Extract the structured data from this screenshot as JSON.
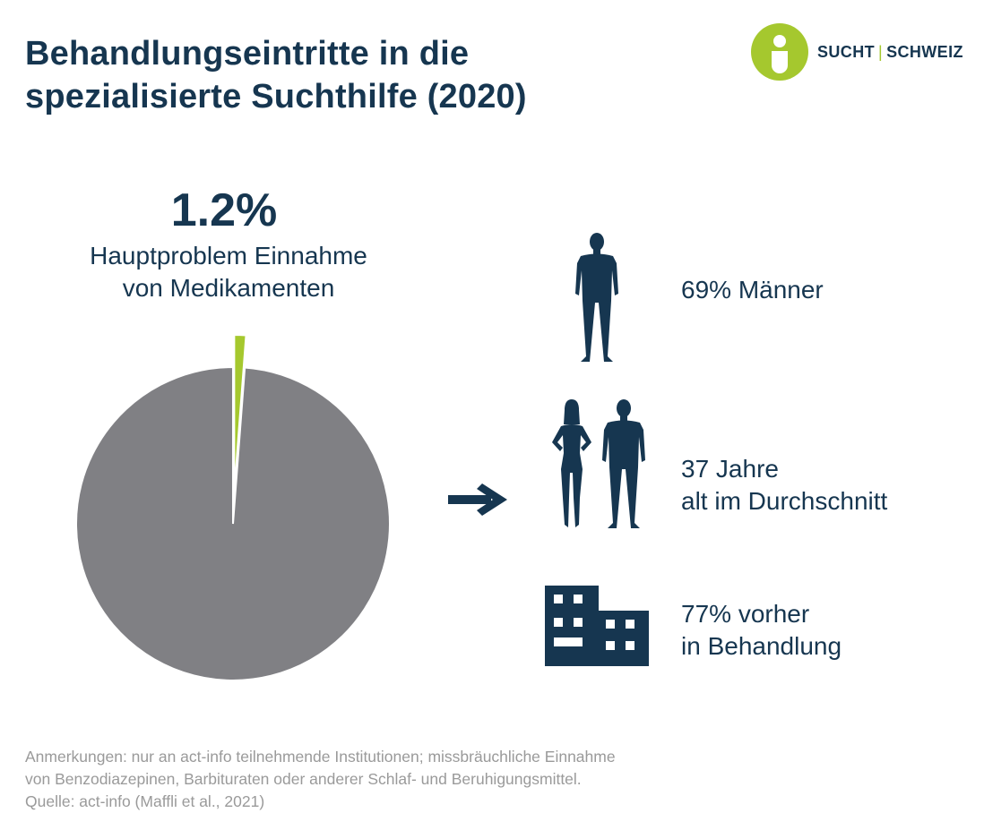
{
  "title": {
    "line1": "Behandlungseintritte in die",
    "line2": "spezialisierte Suchthilfe (2020)"
  },
  "logo": {
    "left": "SUCHT",
    "separator": "|",
    "right": "SCHWEIZ",
    "icon": "sucht-schweiz-person-logo"
  },
  "colors": {
    "navy": "#163650",
    "accent_green": "#a5c82e",
    "pie_gray": "#808084",
    "note_gray": "#9a9a9a"
  },
  "chart_data": {
    "type": "pie",
    "slices": [
      {
        "value": 1.2,
        "color": "#a5c82e",
        "exploded": true
      },
      {
        "value": 98.8,
        "color": "#808084",
        "exploded": false
      }
    ],
    "highlight_value": "1.2%",
    "highlight_label_line1": "Hauptproblem Einnahme",
    "highlight_label_line2": "von Medikamenten"
  },
  "arrow_icon": "arrow-right-icon",
  "stats": [
    {
      "icon": "man-silhouette-icon",
      "line1": "69% Männer",
      "line2": ""
    },
    {
      "icon": "woman-and-man-silhouette-icon",
      "line1": "37 Jahre",
      "line2": "alt im Durchschnitt"
    },
    {
      "icon": "building-icon",
      "line1": "77% vorher",
      "line2": "in Behandlung"
    }
  ],
  "footnote": {
    "line1": "Anmerkungen: nur an act-info teilnehmende Institutionen; missbräuchliche Einnahme",
    "line2": "von Benzodiazepinen, Barbituraten oder anderer Schlaf- und Beruhigungsmittel.",
    "line3": "Quelle: act-info (Maffli et al., 2021)"
  }
}
